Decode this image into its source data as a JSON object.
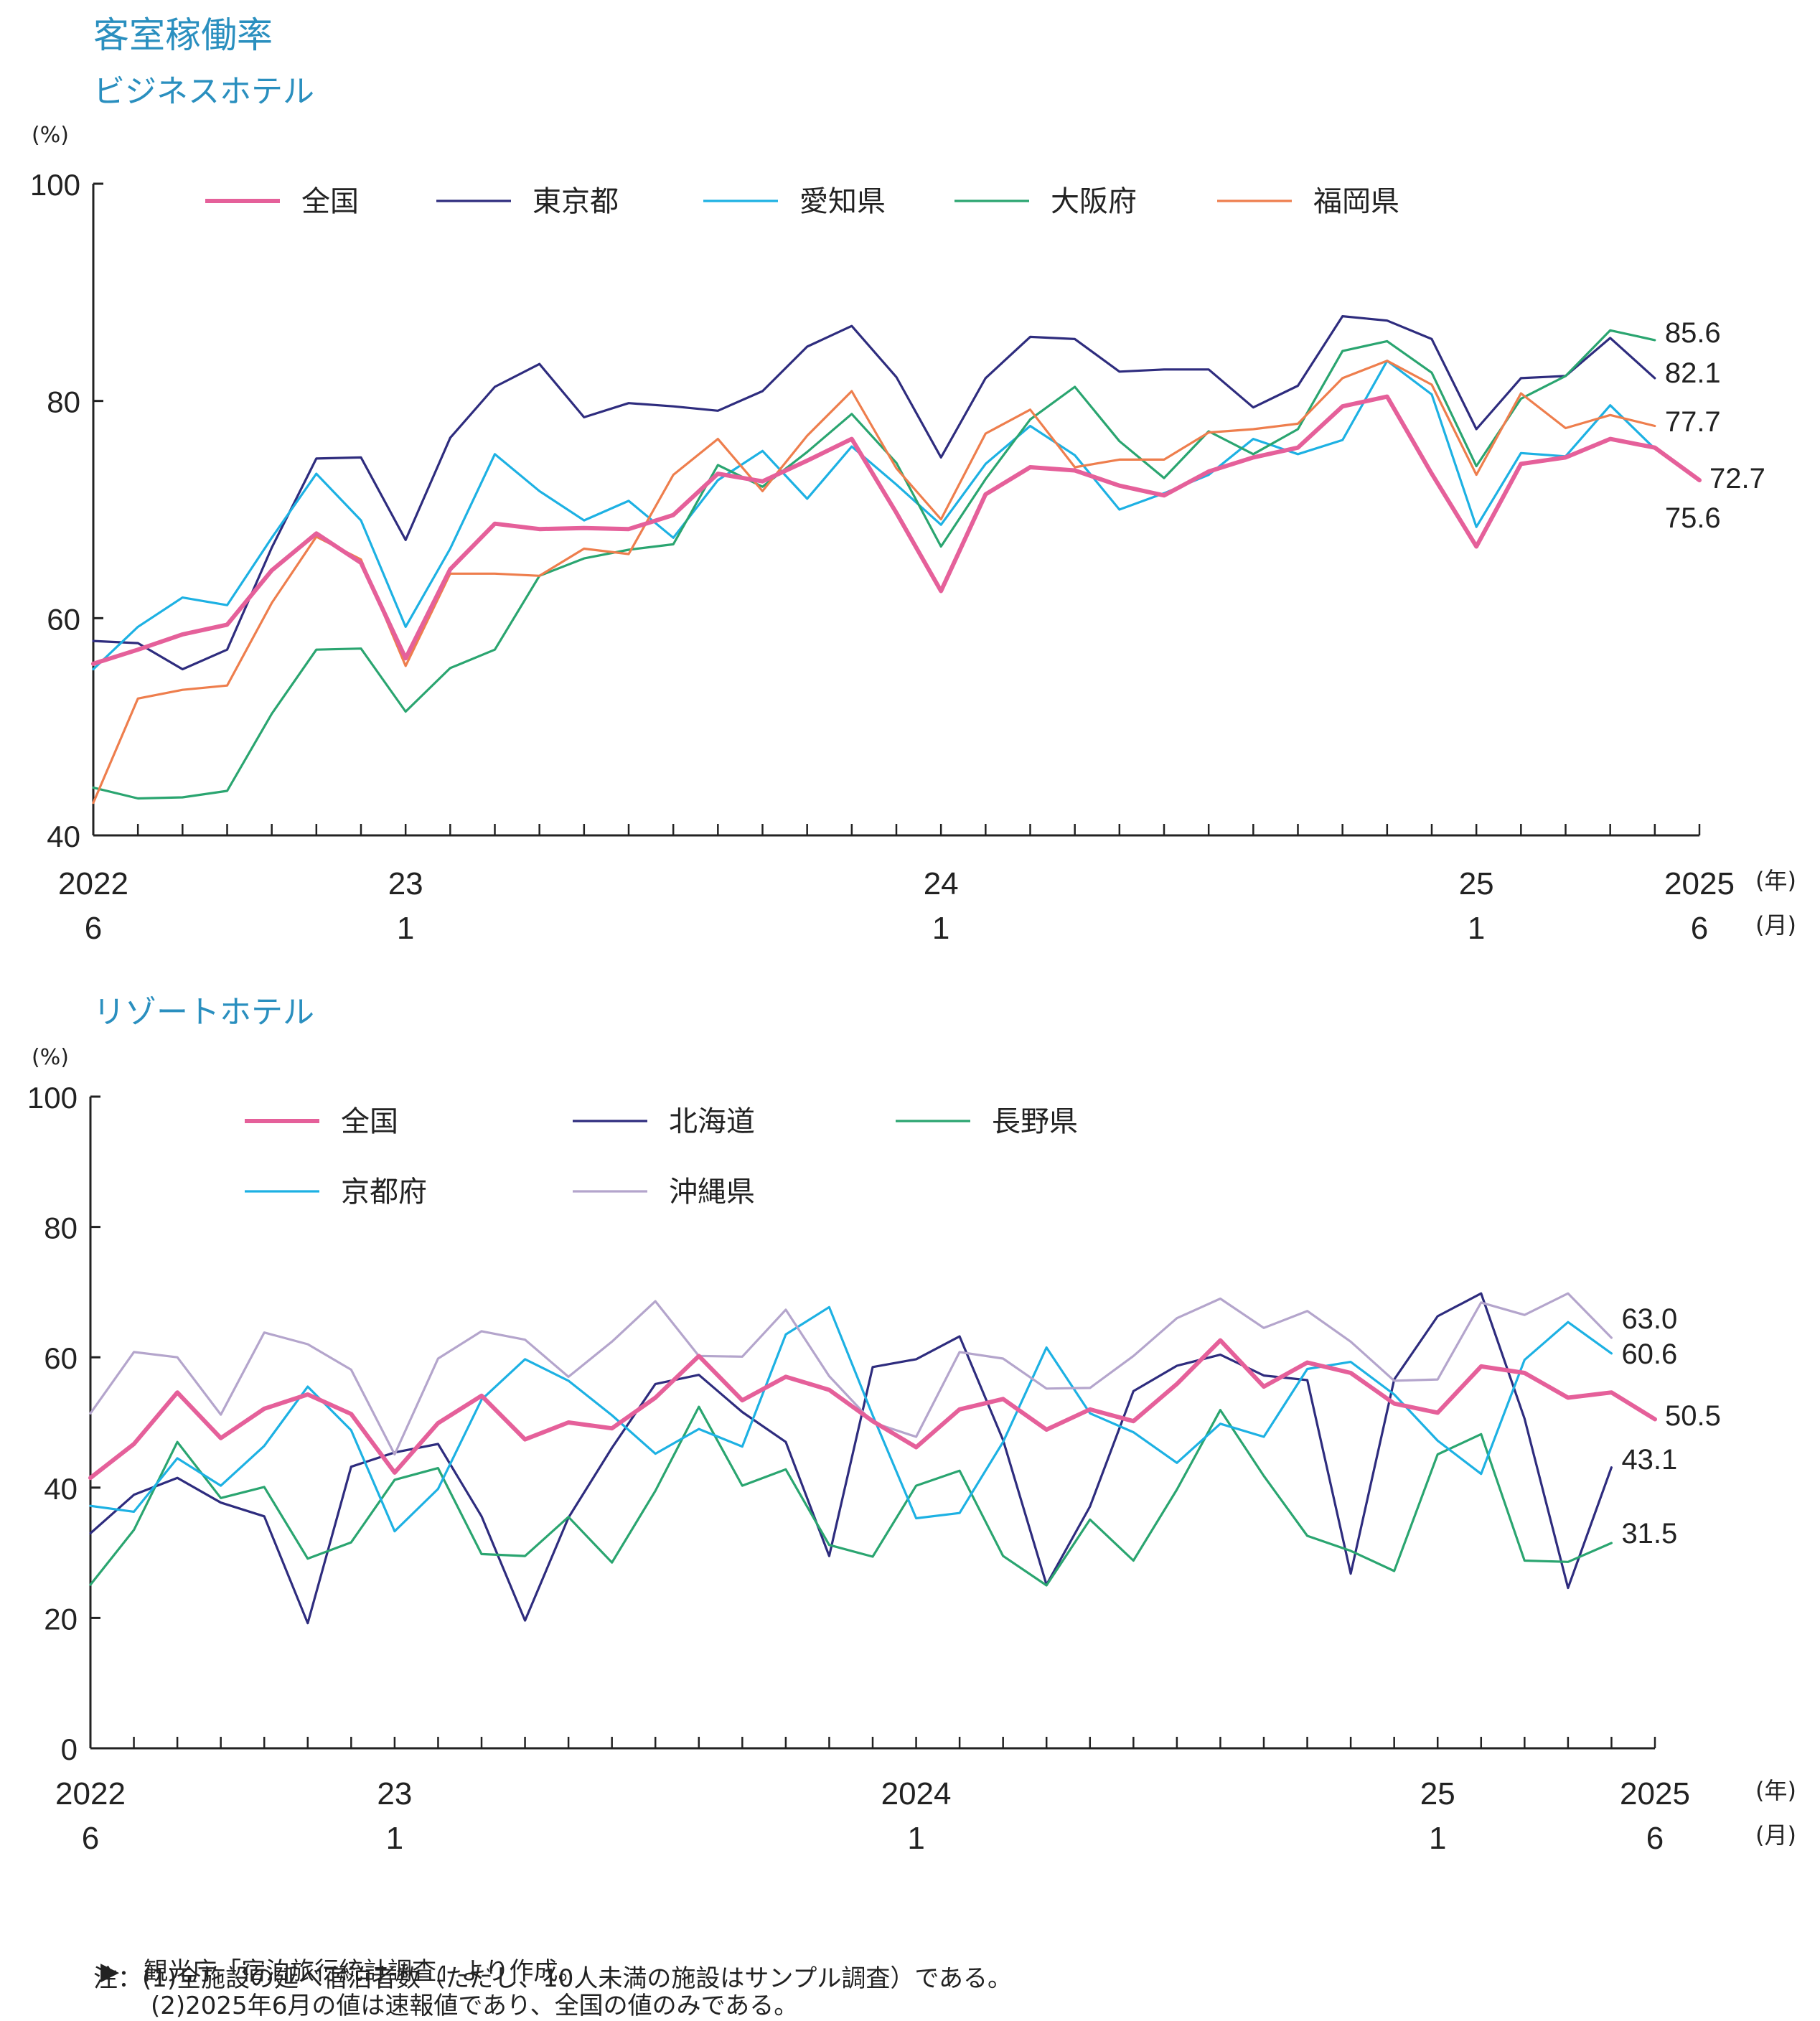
{
  "header": {
    "title": "客室稼働率"
  },
  "notes": {
    "source": "▶　観光庁「宿泊旅行統計調査」より作成。",
    "note1": "注：(1)全施設の延べ宿泊者数（ただし、10人未満の施設はサンプル調査）である。",
    "note2": "(2)2025年6月の値は速報値であり、全国の値のみである。"
  },
  "chart_data": [
    {
      "type": "line",
      "title": "ビジネスホテル",
      "ylabel": "(%)",
      "ylim": [
        40,
        100
      ],
      "yticks": [
        "40",
        "60",
        "80",
        "100"
      ],
      "year_unit": "(年)",
      "month_unit": "(月)",
      "x_tick_labels": [
        {
          "index": 0,
          "year": "2022",
          "month": "6"
        },
        {
          "index": 7,
          "year": "23",
          "month": "1"
        },
        {
          "index": 19,
          "year": "24",
          "month": "1"
        },
        {
          "index": 31,
          "year": "25",
          "month": "1"
        },
        {
          "index": 36,
          "year": "2025",
          "month": "6"
        }
      ],
      "series": [
        {
          "name": "全国",
          "color": "#e5609a",
          "width": "bold",
          "values": [
            55.8,
            57.1,
            58.5,
            59.4,
            64.4,
            67.8,
            65.1,
            56.3,
            64.5,
            68.7,
            68.2,
            68.3,
            68.2,
            69.5,
            73.3,
            72.6,
            74.5,
            76.5,
            69.7,
            62.5,
            71.4,
            73.9,
            73.6,
            72.2,
            71.3,
            73.5,
            74.8,
            75.7,
            79.5,
            80.4,
            73.3,
            66.6,
            74.2,
            74.8,
            76.5,
            75.7,
            72.7
          ],
          "end_label": "72.7"
        },
        {
          "name": "東京都",
          "color": "#2e2c7e",
          "width": "thin",
          "values": [
            57.9,
            57.7,
            55.3,
            57.1,
            66.5,
            74.7,
            74.8,
            67.2,
            76.6,
            81.3,
            83.4,
            78.5,
            79.8,
            79.5,
            79.1,
            80.9,
            85.0,
            86.9,
            82.2,
            74.8,
            82.1,
            85.9,
            85.7,
            82.7,
            82.9,
            82.9,
            79.4,
            81.4,
            87.8,
            87.4,
            85.7,
            77.4,
            82.1,
            82.3,
            85.8,
            82.1
          ],
          "end_label": "82.1"
        },
        {
          "name": "愛知県",
          "color": "#1db1e3",
          "width": "thin",
          "values": [
            55.3,
            59.2,
            61.9,
            61.2,
            67.4,
            73.3,
            69.0,
            59.2,
            66.4,
            75.1,
            71.7,
            69.0,
            70.8,
            67.4,
            72.7,
            75.4,
            71.0,
            75.8,
            72.3,
            68.6,
            74.2,
            77.7,
            75.0,
            70.0,
            71.5,
            73.2,
            76.5,
            75.1,
            76.4,
            83.7,
            80.6,
            68.4,
            75.2,
            74.9,
            79.6,
            75.6
          ],
          "end_label": "75.6"
        },
        {
          "name": "大阪府",
          "color": "#2aa570",
          "width": "thin",
          "values": [
            44.4,
            43.4,
            43.5,
            44.1,
            51.2,
            57.1,
            57.2,
            51.4,
            55.4,
            57.1,
            63.9,
            65.5,
            66.3,
            66.8,
            74.1,
            72.1,
            75.3,
            78.8,
            74.3,
            66.6,
            72.8,
            78.3,
            81.3,
            76.3,
            72.9,
            77.2,
            75.1,
            77.4,
            84.6,
            85.5,
            82.6,
            74.0,
            80.2,
            82.3,
            86.5,
            85.6
          ],
          "end_label": "85.6"
        },
        {
          "name": "福岡県",
          "color": "#ee7e4d",
          "width": "thin",
          "values": [
            43.0,
            52.6,
            53.4,
            53.8,
            61.4,
            67.5,
            65.4,
            55.6,
            64.1,
            64.1,
            63.9,
            66.4,
            65.9,
            73.2,
            76.5,
            71.7,
            76.8,
            80.9,
            73.8,
            69.1,
            77.0,
            79.2,
            73.9,
            74.6,
            74.6,
            77.1,
            77.4,
            77.9,
            82.1,
            83.7,
            81.5,
            73.2,
            80.7,
            77.5,
            78.7,
            77.7
          ],
          "end_label": "77.7"
        }
      ]
    },
    {
      "type": "line",
      "title": "リゾートホテル",
      "ylabel": "(%)",
      "ylim": [
        0,
        100
      ],
      "yticks": [
        "0",
        "20",
        "40",
        "60",
        "80",
        "100"
      ],
      "year_unit": "(年)",
      "month_unit": "(月)",
      "x_tick_labels": [
        {
          "index": 0,
          "year": "2022",
          "month": "6"
        },
        {
          "index": 7,
          "year": "23",
          "month": "1"
        },
        {
          "index": 19,
          "year": "2024",
          "month": "1"
        },
        {
          "index": 31,
          "year": "25",
          "month": "1"
        },
        {
          "index": 36,
          "year": "2025",
          "month": "6"
        }
      ],
      "series": [
        {
          "name": "全国",
          "color": "#e5609a",
          "width": "bold",
          "values": [
            41.5,
            46.7,
            54.6,
            47.6,
            52.1,
            54.3,
            51.3,
            42.3,
            49.9,
            54.1,
            47.4,
            50.0,
            49.1,
            53.8,
            60.2,
            53.4,
            57.0,
            55.0,
            50.2,
            46.2,
            52.0,
            53.6,
            48.9,
            52.0,
            50.2,
            55.9,
            62.6,
            55.5,
            59.2,
            57.6,
            52.9,
            51.5,
            58.6,
            57.6,
            53.8,
            54.6,
            50.5
          ],
          "end_label": "50.5"
        },
        {
          "name": "北海道",
          "color": "#2e2c7e",
          "width": "thin",
          "values": [
            33.0,
            38.9,
            41.5,
            37.7,
            35.6,
            19.2,
            43.2,
            45.4,
            46.7,
            35.6,
            19.6,
            35.4,
            46.1,
            55.9,
            57.3,
            51.6,
            47.0,
            29.5,
            58.5,
            59.7,
            63.2,
            47.3,
            25.1,
            37.1,
            54.8,
            58.7,
            60.4,
            57.2,
            56.5,
            26.8,
            56.6,
            66.3,
            69.8,
            50.6,
            24.6,
            43.1
          ],
          "end_label": "43.1"
        },
        {
          "name": "長野県",
          "color": "#2aa570",
          "width": "thin",
          "values": [
            25.1,
            33.5,
            47.0,
            38.4,
            40.1,
            29.1,
            31.6,
            41.2,
            43.0,
            29.8,
            29.5,
            35.5,
            28.5,
            39.5,
            52.4,
            40.3,
            42.8,
            31.2,
            29.4,
            40.3,
            42.6,
            29.5,
            25.0,
            35.1,
            28.8,
            39.7,
            51.9,
            41.8,
            32.6,
            30.3,
            27.2,
            45.1,
            48.2,
            28.8,
            28.6,
            31.5
          ],
          "end_label": "31.5"
        },
        {
          "name": "京都府",
          "color": "#1db1e3",
          "width": "thin",
          "values": [
            37.2,
            36.3,
            44.5,
            40.3,
            46.4,
            55.5,
            48.8,
            33.3,
            39.8,
            53.5,
            59.7,
            56.4,
            51.1,
            45.2,
            49.0,
            46.3,
            63.5,
            67.7,
            51.1,
            35.3,
            36.1,
            47.0,
            61.5,
            51.4,
            48.5,
            43.8,
            49.8,
            47.8,
            58.2,
            59.3,
            54.3,
            47.2,
            42.1,
            59.6,
            65.4,
            60.6
          ],
          "end_label": "60.6"
        },
        {
          "name": "沖縄県",
          "color": "#b4a5cc",
          "width": "thin",
          "values": [
            51.4,
            60.8,
            60.0,
            51.2,
            63.8,
            62.0,
            58.1,
            45.1,
            59.8,
            64.0,
            62.7,
            57.0,
            62.4,
            68.6,
            60.2,
            60.1,
            67.3,
            57.1,
            50.0,
            47.8,
            60.8,
            59.8,
            55.2,
            55.3,
            60.2,
            66.0,
            69.0,
            64.5,
            67.1,
            62.4,
            56.4,
            56.6,
            68.4,
            66.5,
            69.8,
            63.0
          ],
          "end_label": "63.0"
        }
      ]
    }
  ]
}
